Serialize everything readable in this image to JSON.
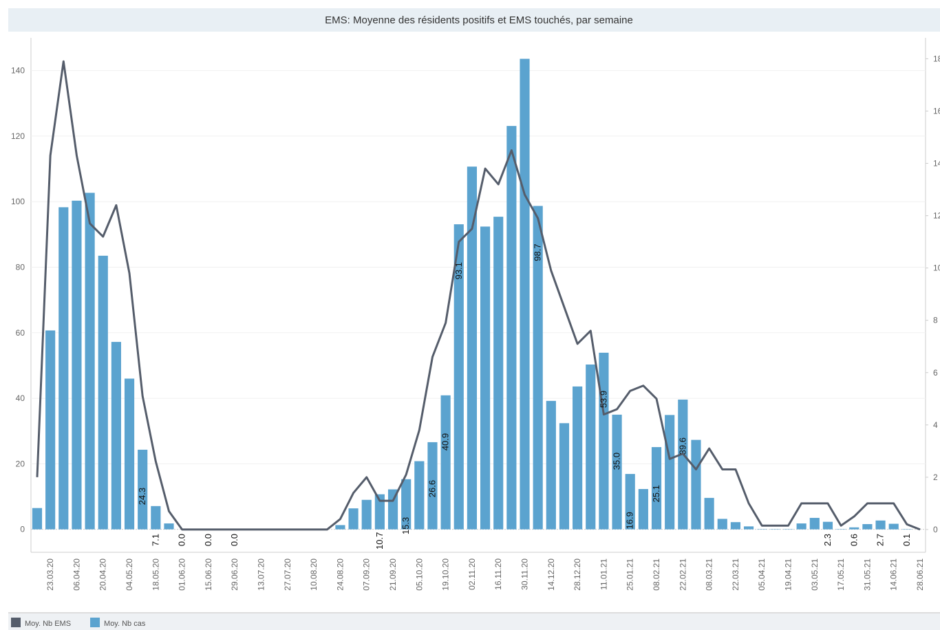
{
  "chart_data": {
    "type": "bar-line",
    "title": "EMS: Moyenne des résidents positifs et EMS touchés, par semaine",
    "categories": [
      null,
      "23.03.20",
      null,
      "06.04.20",
      null,
      "20.04.20",
      null,
      "04.05.20",
      null,
      "18.05.20",
      null,
      "01.06.20",
      null,
      "15.06.20",
      null,
      "29.06.20",
      null,
      "13.07.20",
      null,
      "27.07.20",
      null,
      "10.08.20",
      null,
      "24.08.20",
      null,
      "07.09.20",
      null,
      "21.09.20",
      null,
      "05.10.20",
      null,
      "19.10.20",
      null,
      "02.11.20",
      null,
      "16.11.20",
      null,
      "30.11.20",
      null,
      "14.12.20",
      null,
      "28.12.20",
      null,
      "11.01.21",
      null,
      "25.01.21",
      null,
      "08.02.21",
      null,
      "22.02.21",
      null,
      "08.03.21",
      null,
      "22.03.21",
      null,
      "05.04.21",
      null,
      "19.04.21",
      null,
      "03.05.21",
      null,
      "17.05.21",
      null,
      "31.05.21",
      null,
      "14.06.21",
      null,
      "28.06.21"
    ],
    "series": [
      {
        "name": "Moy. Nb EMS",
        "type": "line",
        "axis": "y2",
        "color": "#555d6b",
        "values": [
          2.0,
          14.3,
          17.9,
          14.3,
          11.7,
          11.2,
          12.4,
          9.8,
          5.1,
          2.6,
          0.7,
          0,
          0,
          0,
          0,
          0,
          0,
          0,
          0,
          0,
          0,
          0,
          0,
          0.4,
          1.4,
          2.0,
          1.1,
          1.1,
          2.1,
          3.8,
          6.6,
          7.9,
          11.0,
          11.5,
          13.8,
          13.2,
          14.5,
          12.8,
          11.9,
          9.9,
          8.5,
          7.1,
          7.6,
          4.4,
          4.6,
          5.3,
          5.5,
          5.0,
          2.7,
          2.9,
          2.3,
          3.1,
          2.3,
          2.3,
          1.0,
          0.15,
          0.15,
          0.15,
          1.0,
          1.0,
          1.0,
          0.15,
          0.5,
          1.0,
          1.0,
          1.0,
          0.2,
          0
        ]
      },
      {
        "name": "Moy. Nb cas",
        "type": "bar",
        "axis": "y",
        "color": "#5ba3cf",
        "values": [
          6.5,
          60.7,
          98.3,
          100.3,
          102.7,
          83.5,
          57.2,
          46,
          24.3,
          7.1,
          1.8,
          0,
          0,
          0,
          0,
          0,
          0,
          0,
          0,
          0,
          0,
          0,
          0,
          1.3,
          6.4,
          9,
          10.7,
          12.2,
          15.3,
          20.8,
          26.6,
          40.9,
          93.1,
          110.7,
          92.4,
          95.4,
          123.1,
          143.6,
          98.7,
          39.2,
          32.4,
          43.6,
          50.3,
          53.9,
          35.0,
          16.9,
          12.3,
          25.1,
          34.9,
          39.6,
          27.3,
          9.6,
          3.2,
          2.2,
          0.9,
          0.1,
          0.1,
          0.1,
          1.8,
          3.5,
          2.3,
          0.1,
          0.6,
          1.6,
          2.7,
          1.7,
          0.1,
          0
        ],
        "value_labels": [
          null,
          null,
          null,
          null,
          null,
          null,
          null,
          null,
          "24.3",
          "7.1",
          null,
          "0.0",
          null,
          "0.0",
          null,
          "0.0",
          null,
          null,
          null,
          null,
          null,
          null,
          null,
          null,
          null,
          null,
          "10.7",
          null,
          "15.3",
          null,
          "26.6",
          "40.9",
          "93.1",
          null,
          null,
          null,
          null,
          null,
          "98.7",
          null,
          null,
          null,
          null,
          "53.9",
          "35.0",
          "16.9",
          null,
          "25.1",
          null,
          "39.6",
          null,
          null,
          null,
          null,
          null,
          null,
          null,
          null,
          null,
          null,
          "2.3",
          null,
          "0.6",
          null,
          "2.7",
          null,
          "0.1",
          null
        ]
      }
    ],
    "ylim": [
      -7,
      150
    ],
    "yticks": [
      0,
      20,
      40,
      60,
      80,
      100,
      120,
      140
    ],
    "y2lim": [
      -0.87,
      18.8
    ],
    "y2ticks": [
      0,
      2,
      4,
      6,
      8,
      10,
      12,
      14,
      16,
      18
    ],
    "grid": true,
    "legend": "bottom"
  }
}
